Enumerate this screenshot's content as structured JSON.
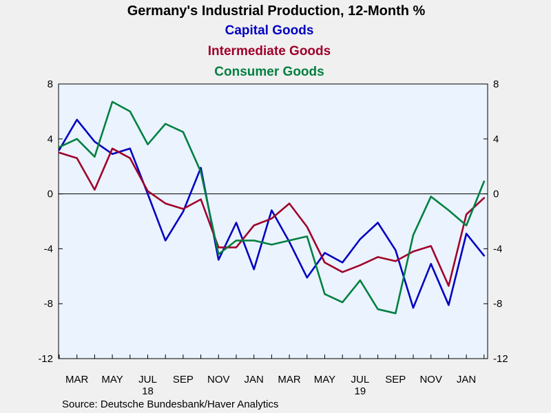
{
  "chart_data": {
    "type": "line",
    "title": "Germany's Industrial Production, 12-Month %",
    "source": "Source:  Deutsche Bundesbank/Haver Analytics",
    "x": [
      "2018-02",
      "2018-03",
      "2018-04",
      "2018-05",
      "2018-06",
      "2018-07",
      "2018-08",
      "2018-09",
      "2018-10",
      "2018-11",
      "2018-12",
      "2019-01",
      "2019-02",
      "2019-03",
      "2019-04",
      "2019-05",
      "2019-06",
      "2019-07",
      "2019-08",
      "2019-09",
      "2019-10",
      "2019-11",
      "2019-12",
      "2020-01",
      "2020-02"
    ],
    "x_tick_labels": [
      "MAR",
      "MAY",
      "JUL",
      "SEP",
      "NOV",
      "JAN",
      "MAR",
      "MAY",
      "JUL",
      "SEP",
      "NOV",
      "JAN"
    ],
    "x_year_labels": [
      "18",
      "19"
    ],
    "ylim": [
      -12,
      8
    ],
    "y_ticks": [
      "8",
      "4",
      "0",
      "-4",
      "-8",
      "-12"
    ],
    "series": [
      {
        "name": "Capital Goods",
        "color": "#0000c0",
        "values": [
          3.2,
          5.4,
          3.8,
          2.9,
          3.3,
          0.0,
          -3.4,
          -1.3,
          1.9,
          -4.8,
          -2.1,
          -5.5,
          -1.2,
          -3.5,
          -6.1,
          -4.3,
          -5.0,
          -3.3,
          -2.1,
          -4.1,
          -8.3,
          -5.1,
          -8.1,
          -2.9,
          -4.5
        ]
      },
      {
        "name": "Intermediate Goods",
        "color": "#a0002a",
        "values": [
          3.0,
          2.6,
          0.3,
          3.3,
          2.6,
          0.2,
          -0.7,
          -1.1,
          -0.4,
          -3.9,
          -3.9,
          -2.3,
          -1.8,
          -0.7,
          -2.4,
          -5.0,
          -5.7,
          -5.2,
          -4.6,
          -4.9,
          -4.2,
          -3.8,
          -6.7,
          -1.5,
          -0.3
        ]
      },
      {
        "name": "Consumer Goods",
        "color": "#008040",
        "values": [
          3.4,
          4.0,
          2.7,
          6.7,
          6.0,
          3.6,
          5.1,
          4.5,
          1.6,
          -4.4,
          -3.4,
          -3.4,
          -3.7,
          -3.4,
          -3.1,
          -7.3,
          -7.9,
          -6.3,
          -8.4,
          -8.7,
          -3.0,
          -0.2,
          -1.2,
          -2.3,
          0.9
        ]
      }
    ]
  }
}
